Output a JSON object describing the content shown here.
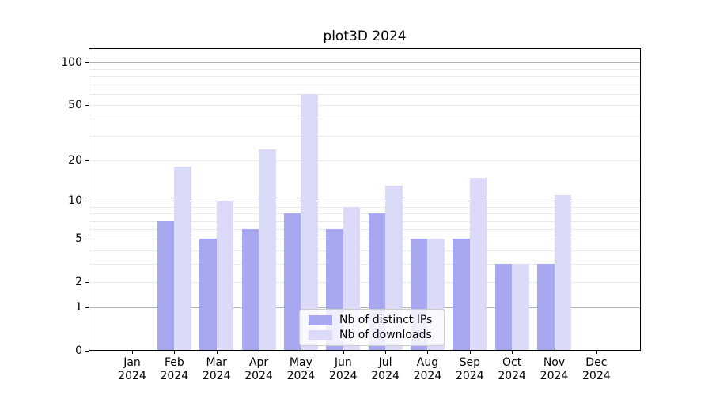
{
  "title": "plot3D 2024",
  "chart_data": {
    "type": "bar",
    "title": "plot3D 2024",
    "categories": [
      "Jan",
      "Feb",
      "Mar",
      "Apr",
      "May",
      "Jun",
      "Jul",
      "Aug",
      "Sep",
      "Oct",
      "Nov",
      "Dec"
    ],
    "x_tick_year": "2024",
    "series": [
      {
        "name": "Nb of distinct IPs",
        "color": "#a8a8f2",
        "values": [
          0,
          7,
          5,
          6,
          8,
          6,
          8,
          5,
          5,
          3,
          3,
          0
        ]
      },
      {
        "name": "Nb of downloads",
        "color": "#dbdbf9",
        "values": [
          0,
          18,
          10,
          24,
          60,
          9,
          13,
          5,
          15,
          3,
          11,
          0
        ]
      }
    ],
    "y_ticks": [
      0,
      1,
      2,
      5,
      10,
      20,
      50,
      100
    ],
    "y_scale": "log1p",
    "ylim": [
      0,
      125
    ],
    "grid": "on",
    "legend_position": "lower center",
    "colors": {
      "major_grid": "#b0b0b0",
      "minor_grid": "#e8e8e8",
      "spine": "#000000"
    }
  }
}
